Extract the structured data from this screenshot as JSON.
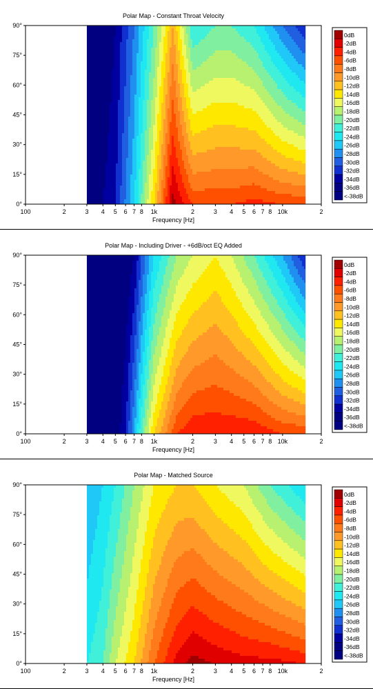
{
  "colors": {
    "levels": [
      "#a00000",
      "#e00000",
      "#ff2000",
      "#ff5000",
      "#ff7a1a",
      "#ff9a2a",
      "#ffc020",
      "#ffe800",
      "#f0f860",
      "#b8f070",
      "#80f0a0",
      "#40f0d8",
      "#20e8f0",
      "#20c8f8",
      "#2090f0",
      "#2060e0",
      "#1030d0",
      "#0000a0",
      "#000080"
    ],
    "frame": "#000000",
    "background": "#ffffff"
  },
  "chart_data": [
    {
      "type": "heatmap",
      "title": "Polar Map - Constant Throat Velocity",
      "xlabel": "Frequency [Hz]",
      "x_scale": "log",
      "xlim": [
        100,
        20000
      ],
      "x_ticks": [
        {
          "v": 100,
          "label": "100"
        },
        {
          "v": 200,
          "label": "2"
        },
        {
          "v": 300,
          "label": "3"
        },
        {
          "v": 400,
          "label": "4"
        },
        {
          "v": 500,
          "label": "5"
        },
        {
          "v": 600,
          "label": "6"
        },
        {
          "v": 700,
          "label": "7"
        },
        {
          "v": 800,
          "label": "8"
        },
        {
          "v": 1000,
          "label": "1k"
        },
        {
          "v": 2000,
          "label": "2"
        },
        {
          "v": 3000,
          "label": "3"
        },
        {
          "v": 4000,
          "label": "4"
        },
        {
          "v": 5000,
          "label": "5"
        },
        {
          "v": 6000,
          "label": "6"
        },
        {
          "v": 7000,
          "label": "7"
        },
        {
          "v": 8000,
          "label": "8"
        },
        {
          "v": 10000,
          "label": "10k"
        },
        {
          "v": 20000,
          "label": "2"
        }
      ],
      "ylim": [
        0,
        90
      ],
      "y_ticks": [
        "0°",
        "15°",
        "30°",
        "45°",
        "60°",
        "75°",
        "90°"
      ],
      "data_range_hz": [
        300,
        15000
      ],
      "legend": [
        "0dB",
        "-2dB",
        "-4dB",
        "-6dB",
        "-8dB",
        "-10dB",
        "-12dB",
        "-14dB",
        "-16dB",
        "-18dB",
        "-20dB",
        "-22dB",
        "-24dB",
        "-26dB",
        "-28dB",
        "-30dB",
        "-32dB",
        "-34dB",
        "-36dB",
        "<-38dB"
      ],
      "levels_db_at_0deg": {
        "freq_hz": [
          300,
          400,
          500,
          700,
          1000,
          1400,
          2000,
          3000,
          4000,
          6000,
          10000,
          15000
        ],
        "db": [
          -38,
          -36,
          -34,
          -26,
          -14,
          -1,
          -6,
          -6,
          -6,
          -5,
          -6,
          -6
        ]
      },
      "levels_db_at_90deg": {
        "freq_hz": [
          300,
          400,
          500,
          700,
          1000,
          1400,
          2000,
          3000,
          4000,
          6000,
          10000,
          15000
        ],
        "db": [
          -38,
          -38,
          -36,
          -30,
          -22,
          -12,
          -24,
          -22,
          -22,
          -24,
          -30,
          -34
        ]
      }
    },
    {
      "type": "heatmap",
      "title": "Polar Map - Including Driver - +6dB/oct EQ Added",
      "xlabel": "Frequency [Hz]",
      "x_scale": "log",
      "xlim": [
        100,
        20000
      ],
      "x_ticks": [
        {
          "v": 100,
          "label": "100"
        },
        {
          "v": 200,
          "label": "2"
        },
        {
          "v": 300,
          "label": "3"
        },
        {
          "v": 400,
          "label": "4"
        },
        {
          "v": 500,
          "label": "5"
        },
        {
          "v": 600,
          "label": "6"
        },
        {
          "v": 700,
          "label": "7"
        },
        {
          "v": 800,
          "label": "8"
        },
        {
          "v": 1000,
          "label": "1k"
        },
        {
          "v": 2000,
          "label": "2"
        },
        {
          "v": 3000,
          "label": "3"
        },
        {
          "v": 4000,
          "label": "4"
        },
        {
          "v": 5000,
          "label": "5"
        },
        {
          "v": 6000,
          "label": "6"
        },
        {
          "v": 7000,
          "label": "7"
        },
        {
          "v": 8000,
          "label": "8"
        },
        {
          "v": 10000,
          "label": "10k"
        },
        {
          "v": 20000,
          "label": "2"
        }
      ],
      "ylim": [
        0,
        90
      ],
      "y_ticks": [
        "0°",
        "15°",
        "30°",
        "45°",
        "60°",
        "75°",
        "90°"
      ],
      "data_range_hz": [
        300,
        15000
      ],
      "legend": [
        "0dB",
        "-2dB",
        "-4dB",
        "-6dB",
        "-8dB",
        "-10dB",
        "-12dB",
        "-14dB",
        "-16dB",
        "-18dB",
        "-20dB",
        "-22dB",
        "-24dB",
        "-26dB",
        "-28dB",
        "-30dB",
        "-32dB",
        "-34dB",
        "-36dB",
        "<-38dB"
      ],
      "levels_db_at_0deg": {
        "freq_hz": [
          300,
          500,
          600,
          700,
          800,
          1000,
          1500,
          2000,
          3000,
          4000,
          6000,
          10000,
          15000
        ],
        "db": [
          -38,
          -38,
          -34,
          -28,
          -22,
          -14,
          -6,
          -4,
          -4,
          -4,
          -4,
          -6,
          -6
        ]
      },
      "levels_db_at_90deg": {
        "freq_hz": [
          300,
          500,
          600,
          700,
          800,
          1000,
          1500,
          2000,
          3000,
          4000,
          6000,
          10000,
          15000
        ],
        "db": [
          -38,
          -38,
          -38,
          -36,
          -32,
          -26,
          -20,
          -18,
          -16,
          -18,
          -22,
          -28,
          -34
        ]
      }
    },
    {
      "type": "heatmap",
      "title": "Polar Map - Matched Source",
      "xlabel": "Frequency [Hz]",
      "x_scale": "log",
      "xlim": [
        100,
        20000
      ],
      "x_ticks": [
        {
          "v": 100,
          "label": "100"
        },
        {
          "v": 200,
          "label": "2"
        },
        {
          "v": 300,
          "label": "3"
        },
        {
          "v": 400,
          "label": "4"
        },
        {
          "v": 500,
          "label": "5"
        },
        {
          "v": 600,
          "label": "6"
        },
        {
          "v": 700,
          "label": "7"
        },
        {
          "v": 800,
          "label": "8"
        },
        {
          "v": 1000,
          "label": "1k"
        },
        {
          "v": 2000,
          "label": "2"
        },
        {
          "v": 3000,
          "label": "3"
        },
        {
          "v": 4000,
          "label": "4"
        },
        {
          "v": 5000,
          "label": "5"
        },
        {
          "v": 6000,
          "label": "6"
        },
        {
          "v": 7000,
          "label": "7"
        },
        {
          "v": 8000,
          "label": "8"
        },
        {
          "v": 10000,
          "label": "10k"
        },
        {
          "v": 20000,
          "label": "2"
        }
      ],
      "ylim": [
        0,
        90
      ],
      "y_ticks": [
        "0°",
        "15°",
        "30°",
        "45°",
        "60°",
        "75°",
        "90°"
      ],
      "data_range_hz": [
        300,
        15000
      ],
      "legend": [
        "0dB",
        "-2dB",
        "-4dB",
        "-6dB",
        "-8dB",
        "-10dB",
        "-12dB",
        "-14dB",
        "-16dB",
        "-18dB",
        "-20dB",
        "-22dB",
        "-24dB",
        "-26dB",
        "-28dB",
        "-30dB",
        "-32dB",
        "-34dB",
        "-36dB",
        "<-38dB"
      ],
      "levels_db_at_0deg": {
        "freq_hz": [
          300,
          400,
          500,
          700,
          1000,
          1500,
          2000,
          3000,
          5000,
          8000,
          15000
        ],
        "db": [
          -24,
          -22,
          -18,
          -14,
          -8,
          -3,
          -1,
          -2,
          -3,
          -3,
          -4
        ]
      },
      "levels_db_at_90deg": {
        "freq_hz": [
          300,
          400,
          500,
          700,
          1000,
          1500,
          2000,
          3000,
          5000,
          8000,
          15000
        ],
        "db": [
          -28,
          -26,
          -24,
          -20,
          -16,
          -14,
          -14,
          -16,
          -18,
          -22,
          -26
        ]
      }
    }
  ]
}
